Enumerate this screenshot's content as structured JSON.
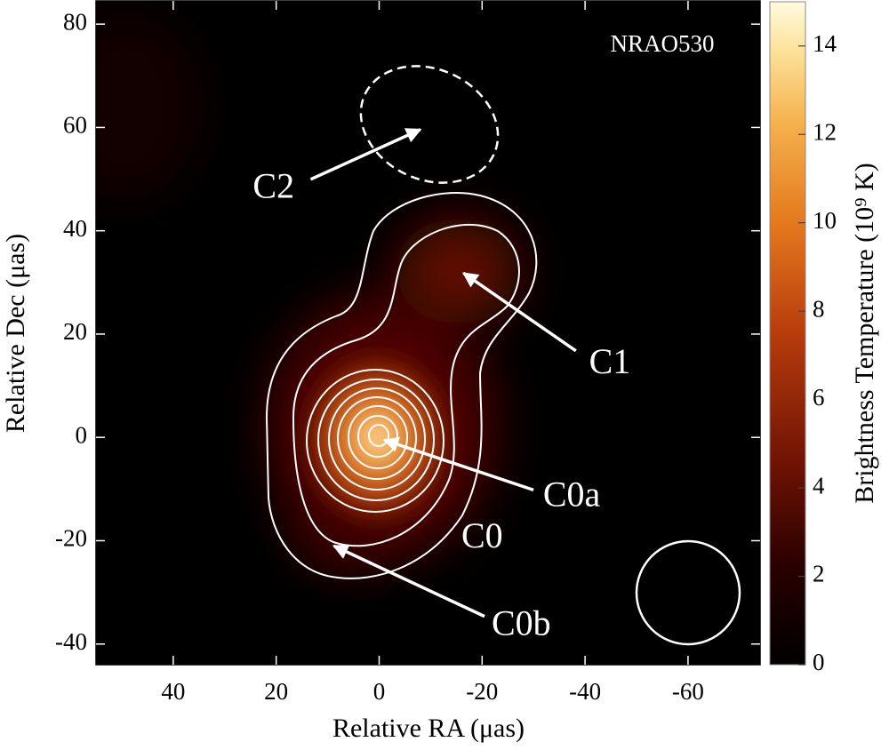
{
  "chart_data": {
    "type": "image",
    "source": "NRAO530",
    "xlabel": "Relative RA (μas)",
    "ylabel": "Relative Dec (μas)",
    "xlim": [
      55,
      -74
    ],
    "ylim": [
      -44,
      84.5
    ],
    "xticks": [
      40,
      20,
      0,
      -20,
      -40,
      -60
    ],
    "yticks": [
      -40,
      -20,
      0,
      20,
      40,
      60,
      80
    ],
    "colorbar": {
      "label": "Brightness Temperature (10⁹ K)",
      "lim": [
        0,
        15
      ],
      "ticks": [
        0,
        2,
        4,
        6,
        8,
        10,
        12,
        14
      ]
    },
    "annotations": [
      {
        "text": "C2",
        "x": -8,
        "y": 59.6,
        "text_x": 20.5,
        "text_y": 48
      },
      {
        "text": "C1",
        "x": -16.4,
        "y": 31.8,
        "text_x": -44.8,
        "text_y": 14
      },
      {
        "text": "C0a",
        "x": -1,
        "y": -0.5,
        "text_x": -37.4,
        "text_y": -11.7
      },
      {
        "text": "C0",
        "text_x": -20,
        "text_y": -19.7
      },
      {
        "text": "C0b",
        "x": 8.8,
        "y": -21,
        "text_x": -27.6,
        "text_y": -36.7
      }
    ]
  }
}
